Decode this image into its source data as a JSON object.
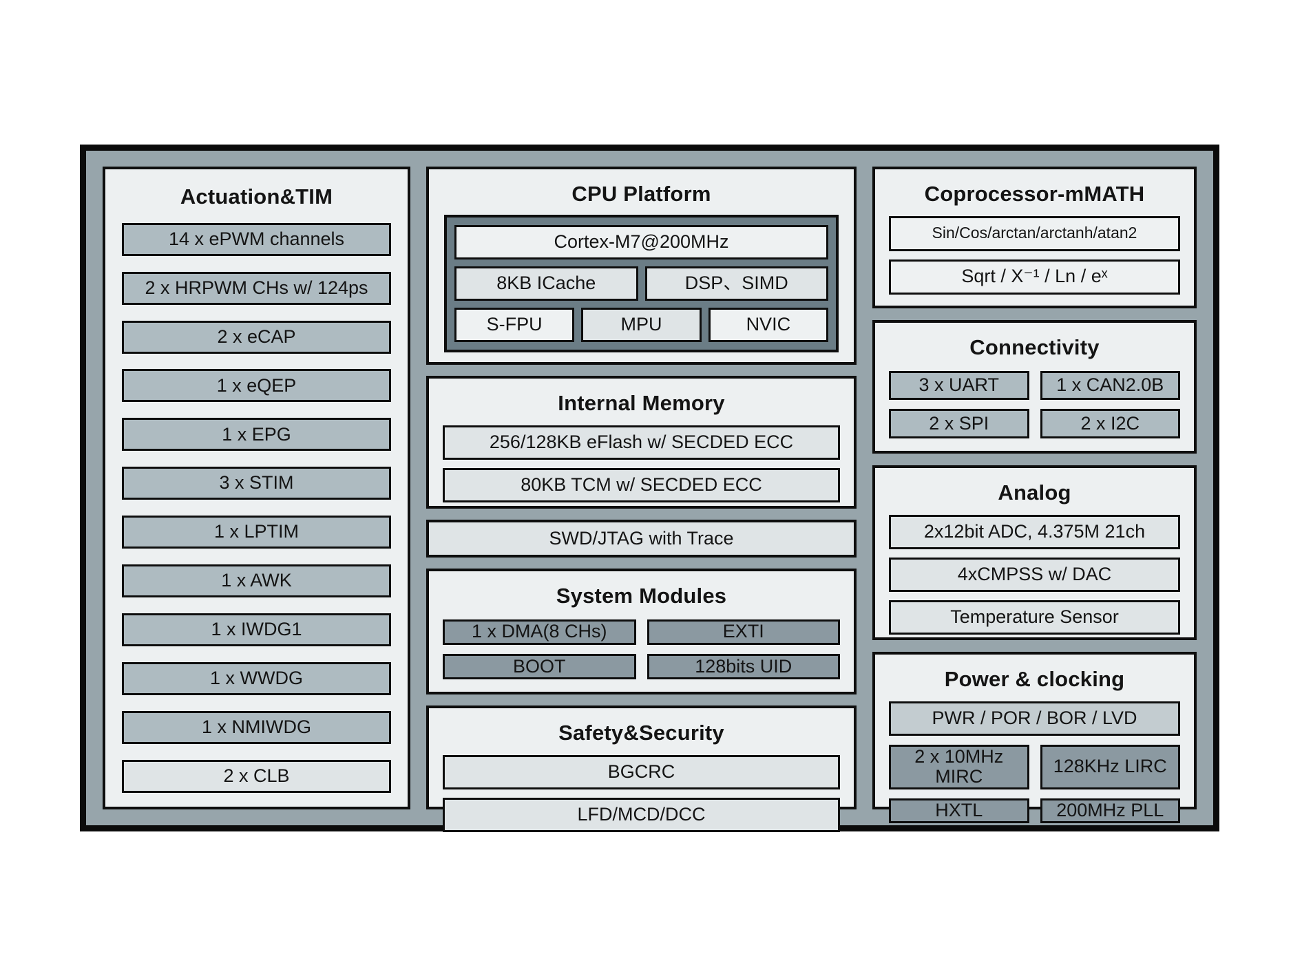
{
  "colors": {
    "page_bg": "#ffffff",
    "frame_bg": "#97a5ab",
    "frame_border": "#0b0b0b",
    "panel_bg": "#edf0f1",
    "box_gray": "#aebbc1",
    "box_dark": "#8b99a1",
    "box_light": "#dfe4e6",
    "box_lightest": "#eef1f2",
    "box_pale": "#c3ccd0",
    "cpu_inner_bg": "#6b7d86",
    "text": "#141414"
  },
  "left": {
    "title": "Actuation&TIM",
    "items": [
      "14 x ePWM channels",
      "2 x HRPWM CHs w/ 124ps",
      "2 x eCAP",
      "1 x eQEP",
      "1 x EPG",
      "3 x STIM",
      "1 x LPTIM",
      "1 x AWK",
      "1 x IWDG1",
      "1 x WWDG",
      "1 x NMIWDG",
      "2 x CLB"
    ]
  },
  "middle": {
    "cpu": {
      "title": "CPU Platform",
      "core": "Cortex-M7@200MHz",
      "row2": [
        "8KB ICache",
        "DSP、SIMD"
      ],
      "row3": [
        "S-FPU",
        "MPU",
        "NVIC"
      ]
    },
    "memory": {
      "title": "Internal Memory",
      "items": [
        "256/128KB eFlash w/ SECDED ECC",
        "80KB TCM w/ SECDED ECC"
      ]
    },
    "debug_label": "SWD/JTAG with Trace",
    "system": {
      "title": "System Modules",
      "cells": [
        "1 x DMA(8 CHs)",
        "EXTI",
        "BOOT",
        "128bits UID"
      ]
    },
    "safety": {
      "title": "Safety&Security",
      "items": [
        "BGCRC",
        "LFD/MCD/DCC"
      ]
    }
  },
  "right": {
    "math": {
      "title": "Coprocessor-mMATH",
      "items": [
        "Sin/Cos/arctan/arctanh/atan2",
        "Sqrt / X⁻¹ / Ln / eˣ"
      ]
    },
    "connectivity": {
      "title": "Connectivity",
      "cells": [
        "3 x UART",
        "1 x CAN2.0B",
        "2 x SPI",
        "2 x I2C"
      ]
    },
    "analog": {
      "title": "Analog",
      "items": [
        "2x12bit ADC, 4.375M 21ch",
        "4xCMPSS w/ DAC",
        "Temperature Sensor"
      ]
    },
    "power": {
      "title": "Power & clocking",
      "wide": "PWR / POR / BOR / LVD",
      "cells": [
        "2 x 10MHz MIRC",
        "128KHz LIRC",
        "HXTL",
        "200MHz PLL"
      ]
    }
  }
}
